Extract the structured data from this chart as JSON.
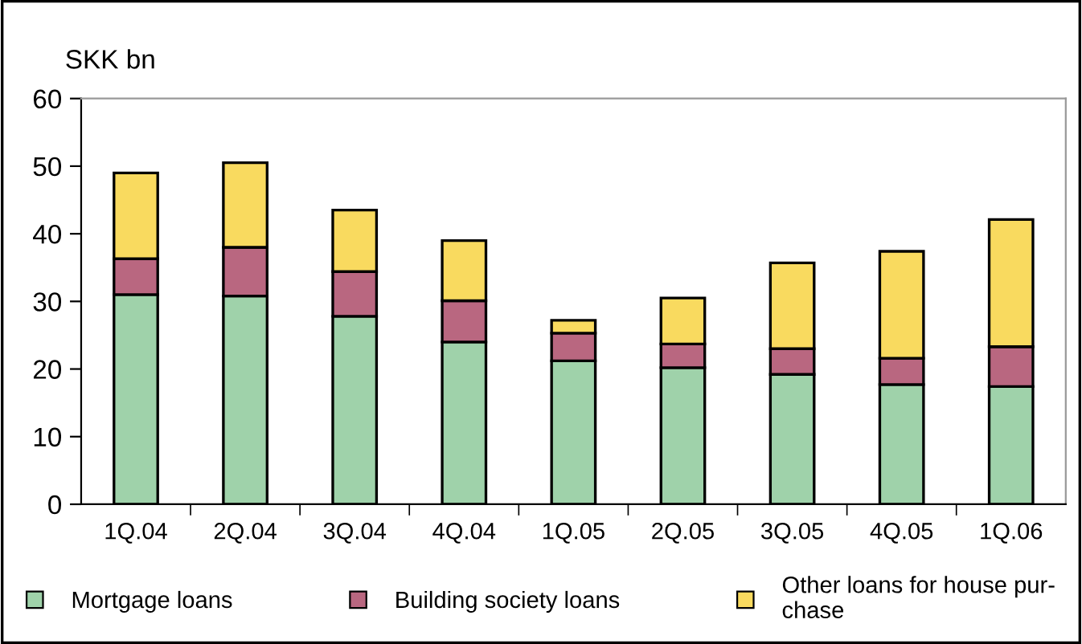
{
  "chart_data": {
    "type": "bar",
    "stacked": true,
    "ylabel": "SKK bn",
    "categories": [
      "1Q.04",
      "2Q.04",
      "3Q.04",
      "4Q.04",
      "1Q.05",
      "2Q.05",
      "3Q.05",
      "4Q.05",
      "1Q.06"
    ],
    "series": [
      {
        "name": "Mortgage loans",
        "color": "#9fd2aa",
        "values": [
          31,
          30.8,
          27.8,
          24,
          21.2,
          20.2,
          19.2,
          17.7,
          17.4
        ]
      },
      {
        "name": "Building society loans",
        "color": "#b96780",
        "values": [
          5.3,
          7.2,
          6.6,
          6.1,
          4.1,
          3.5,
          3.8,
          3.9,
          5.9
        ]
      },
      {
        "name": "Other loans for house pur-\nchase",
        "color": "#f9da5f",
        "values": [
          12.7,
          12.5,
          9.1,
          8.9,
          1.9,
          6.8,
          12.7,
          15.8,
          18.8
        ]
      }
    ],
    "ylim": [
      0,
      60
    ],
    "yticks": [
      0,
      10,
      20,
      30,
      40,
      50,
      60
    ],
    "grid": false,
    "legend": "bottom"
  }
}
